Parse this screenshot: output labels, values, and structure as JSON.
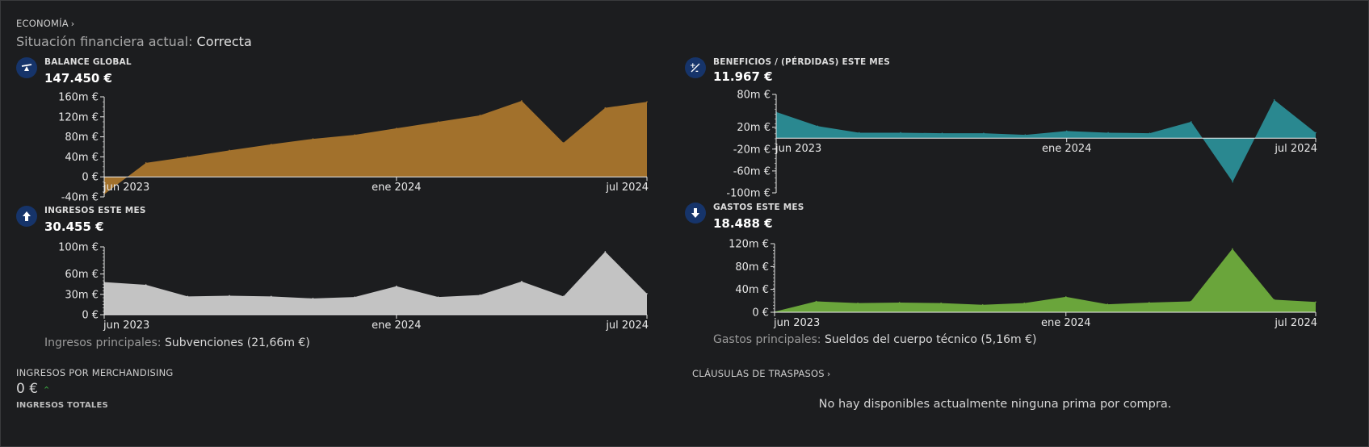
{
  "header": {
    "economy_link": "ECONOMÍA",
    "status_label": "Situación financiera actual:",
    "status_value": "Correcta"
  },
  "metrics": {
    "balance": {
      "label": "BALANCE GLOBAL",
      "value": "147.450 €",
      "icon": "scale-icon",
      "color": "#a2712c",
      "chart_data": {
        "type": "area",
        "x": [
          "2023-06",
          "2023-07",
          "2023-08",
          "2023-09",
          "2023-10",
          "2023-11",
          "2023-12",
          "2024-01",
          "2024-02",
          "2024-03",
          "2024-04",
          "2024-05",
          "2024-06",
          "2024-07"
        ],
        "y_unit": "m €",
        "series": [
          {
            "values": [
              -35,
              28,
              40,
              53,
              65,
              76,
              84,
              97,
              110,
              123,
              152,
              68,
              138,
              150
            ]
          }
        ],
        "ylim": [
          -40,
          160
        ],
        "y_ticks": [
          -40,
          0,
          40,
          80,
          120,
          160
        ],
        "y_tick_labels": [
          "-40m €",
          "0 €",
          "40m €",
          "80m €",
          "120m €",
          "160m €"
        ],
        "x_tick_labels": [
          "jun 2023",
          "ene 2024",
          "jul 2024"
        ],
        "xlabel": "",
        "ylabel": ""
      }
    },
    "profit": {
      "label": "BENEFICIOS / (PÉRDIDAS) ESTE MES",
      "value": "11.967 €",
      "icon": "plus-minus-icon",
      "color": "#2a8890",
      "chart_data": {
        "type": "area",
        "x": [
          "2023-06",
          "2023-07",
          "2023-08",
          "2023-09",
          "2023-10",
          "2023-11",
          "2023-12",
          "2024-01",
          "2024-02",
          "2024-03",
          "2024-04",
          "2024-05",
          "2024-06",
          "2024-07"
        ],
        "y_unit": "m €",
        "series": [
          {
            "values": [
              48,
              22,
              10,
              10,
              9,
              9,
              6,
              13,
              10,
              9,
              30,
              -80,
              70,
              10
            ]
          }
        ],
        "ylim": [
          -100,
          80
        ],
        "y_ticks": [
          -100,
          -60,
          -20,
          20,
          80
        ],
        "y_tick_labels": [
          "-100m €",
          "-60m €",
          "-20m €",
          "20m €",
          "80m €"
        ],
        "x_tick_labels": [
          "jun 2023",
          "ene 2024",
          "jul 2024"
        ],
        "xlabel": "",
        "ylabel": ""
      }
    },
    "income": {
      "label": "INGRESOS ESTE MES",
      "value": "30.455 €",
      "icon": "arrow-up-icon",
      "color": "#c3c3c3",
      "caption_label": "Ingresos principales:",
      "caption_value": "Subvenciones (21,66m €)",
      "chart_data": {
        "type": "area",
        "x": [
          "2023-06",
          "2023-07",
          "2023-08",
          "2023-09",
          "2023-10",
          "2023-11",
          "2023-12",
          "2024-01",
          "2024-02",
          "2024-03",
          "2024-04",
          "2024-05",
          "2024-06",
          "2024-07"
        ],
        "y_unit": "m €",
        "series": [
          {
            "values": [
              48,
              44,
              27,
              28,
              27,
              24,
              26,
              42,
              26,
              29,
              49,
              27,
              93,
              31
            ]
          }
        ],
        "ylim": [
          0,
          100
        ],
        "y_ticks": [
          0,
          30,
          60,
          100
        ],
        "y_tick_labels": [
          "0 €",
          "30m €",
          "60m €",
          "100m €"
        ],
        "x_tick_labels": [
          "jun 2023",
          "ene 2024",
          "jul 2024"
        ],
        "xlabel": "",
        "ylabel": ""
      }
    },
    "expenses": {
      "label": "GASTOS ESTE MES",
      "value": "18.488 €",
      "icon": "arrow-down-icon",
      "color": "#6aa53b",
      "caption_label": "Gastos principales:",
      "caption_value": "Sueldos del cuerpo técnico (5,16m €)",
      "chart_data": {
        "type": "area",
        "x": [
          "2023-06",
          "2023-07",
          "2023-08",
          "2023-09",
          "2023-10",
          "2023-11",
          "2023-12",
          "2024-01",
          "2024-02",
          "2024-03",
          "2024-04",
          "2024-05",
          "2024-06",
          "2024-07"
        ],
        "y_unit": "m €",
        "series": [
          {
            "values": [
              1,
              19,
              16,
              17,
              16,
              13,
              16,
              27,
              14,
              17,
              19,
              111,
              22,
              18
            ]
          }
        ],
        "ylim": [
          0,
          120
        ],
        "y_ticks": [
          0,
          40,
          80,
          120
        ],
        "y_tick_labels": [
          "0 €",
          "40m €",
          "80m €",
          "120m €"
        ],
        "x_tick_labels": [
          "jun 2023",
          "ene 2024",
          "jul 2024"
        ],
        "xlabel": "",
        "ylabel": ""
      }
    }
  },
  "merchandising": {
    "label": "INGRESOS POR MERCHANDISING",
    "value": "0 €",
    "trend_icon": "chevron-up-icon",
    "sub_label": "INGRESOS TOTALES"
  },
  "transfers": {
    "link": "CLÁUSULAS DE TRASPASOS",
    "empty_message": "No hay disponibles actualmente ninguna prima por compra."
  }
}
